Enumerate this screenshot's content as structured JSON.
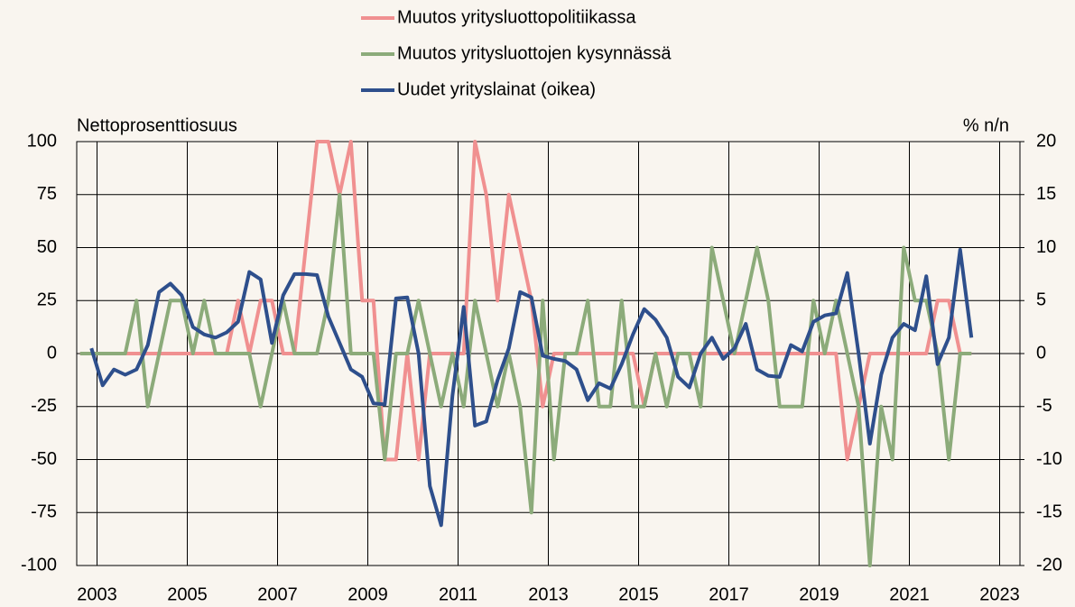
{
  "chart_data": {
    "type": "line",
    "y_label": "Nettoprosenttiosuus",
    "y2_label": "% n/n",
    "x": [
      2002.625,
      2002.875,
      2003.125,
      2003.375,
      2003.625,
      2003.875,
      2004.125,
      2004.375,
      2004.625,
      2004.875,
      2005.125,
      2005.375,
      2005.625,
      2005.875,
      2006.125,
      2006.375,
      2006.625,
      2006.875,
      2007.125,
      2007.375,
      2007.625,
      2007.875,
      2008.125,
      2008.375,
      2008.625,
      2008.875,
      2009.125,
      2009.375,
      2009.625,
      2009.875,
      2010.125,
      2010.375,
      2010.625,
      2010.875,
      2011.125,
      2011.375,
      2011.625,
      2011.875,
      2012.125,
      2012.375,
      2012.625,
      2012.875,
      2013.125,
      2013.375,
      2013.625,
      2013.875,
      2014.125,
      2014.375,
      2014.625,
      2014.875,
      2015.125,
      2015.375,
      2015.625,
      2015.875,
      2016.125,
      2016.375,
      2016.625,
      2016.875,
      2017.125,
      2017.375,
      2017.625,
      2017.875,
      2018.125,
      2018.375,
      2018.625,
      2018.875,
      2019.125,
      2019.375,
      2019.625,
      2019.875,
      2020.125,
      2020.375,
      2020.625,
      2020.875,
      2021.125,
      2021.375,
      2021.625,
      2021.875,
      2022.125,
      2022.375
    ],
    "series": [
      {
        "name": "Muutos yritysluottopolitiikassa",
        "color": "#f09090",
        "values": [
          0,
          0,
          0,
          0,
          0,
          0,
          0,
          0,
          0,
          0,
          0,
          0,
          0,
          0,
          25,
          0,
          25,
          25,
          0,
          0,
          50,
          100,
          100,
          75,
          100,
          25,
          25,
          -50,
          -50,
          0,
          -50,
          0,
          0,
          0,
          0,
          100,
          75,
          25,
          75,
          50,
          25,
          -25,
          0,
          0,
          0,
          0,
          0,
          0,
          0,
          0,
          -25,
          0,
          0,
          0,
          0,
          0,
          0,
          0,
          0,
          0,
          0,
          0,
          0,
          0,
          0,
          0,
          0,
          0,
          -50,
          -25,
          0,
          0,
          0,
          0,
          0,
          0,
          25,
          25,
          0,
          0
        ]
      },
      {
        "name": "Muutos yritysluottojen kysynnässä",
        "color": "#8cab7a",
        "values": [
          0,
          0,
          0,
          0,
          0,
          25,
          -25,
          0,
          25,
          25,
          0,
          25,
          0,
          0,
          0,
          0,
          -25,
          0,
          25,
          0,
          0,
          0,
          25,
          75,
          0,
          0,
          0,
          -50,
          0,
          0,
          25,
          0,
          -25,
          0,
          -25,
          25,
          0,
          -25,
          0,
          -25,
          -75,
          25,
          -50,
          0,
          0,
          25,
          -25,
          -25,
          25,
          -25,
          -25,
          0,
          -25,
          0,
          0,
          -25,
          50,
          25,
          0,
          25,
          50,
          25,
          -25,
          -25,
          -25,
          25,
          0,
          25,
          0,
          -25,
          -100,
          -25,
          -50,
          50,
          25,
          25,
          0,
          -50,
          0,
          0
        ]
      },
      {
        "name": "Uudet yrityslainat (oikea)",
        "color": "#2e4f8c",
        "axis": "y2",
        "values": [
          null,
          0.5,
          -3,
          -1.5,
          -2,
          -1.5,
          0.8,
          5.8,
          6.6,
          5.5,
          2.5,
          1.8,
          1.5,
          2,
          3,
          7.7,
          7,
          1,
          5.5,
          7.5,
          7.5,
          7.4,
          3.5,
          1,
          -1.5,
          -2.2,
          -4.7,
          -4.8,
          5.2,
          5.3,
          0,
          -12.5,
          -16.2,
          -4,
          4.4,
          -6.8,
          -6.4,
          -2.5,
          0.5,
          5.8,
          5.3,
          -0.2,
          -0.5,
          -0.7,
          -1.5,
          -4.4,
          -2.8,
          -3.3,
          -1,
          1.8,
          4.2,
          3.2,
          1.5,
          -2.2,
          -3.2,
          0,
          1.5,
          -0.5,
          0.5,
          2.8,
          -1.5,
          -2.1,
          -2.2,
          0.8,
          0.2,
          3,
          3.6,
          3.8,
          7.6,
          0,
          -8.5,
          -2,
          1.5,
          2.8,
          2.2,
          7.3,
          -1,
          1.5,
          9.8,
          1.5
        ]
      }
    ],
    "xlim": [
      2002.55,
      2023.45
    ],
    "xticks": [
      2003,
      2005,
      2007,
      2009,
      2011,
      2013,
      2015,
      2017,
      2019,
      2021,
      2023
    ],
    "ylim": [
      -100,
      100
    ],
    "yticks": [
      -100,
      -75,
      -50,
      -25,
      0,
      25,
      50,
      75,
      100
    ],
    "y2lim": [
      -20,
      20
    ],
    "y2ticks": [
      -20,
      -15,
      -10,
      -5,
      0,
      5,
      10,
      15,
      20
    ],
    "grid": true,
    "legend": "top"
  }
}
